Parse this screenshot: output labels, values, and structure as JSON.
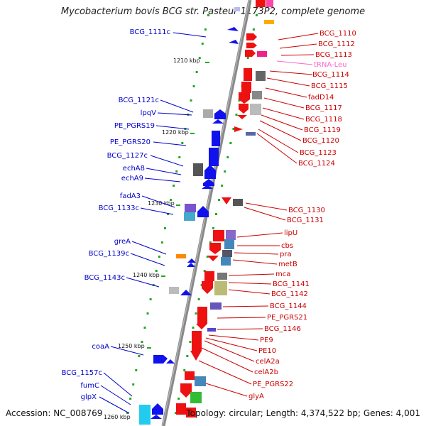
{
  "title": "Mycobacterium bovis BCG str. Pasteur 1173P2, complete genome",
  "footer": {
    "accession": "Accession: NC_008769",
    "summary": "Topology: circular; Length: 4,374,522 bp; Genes: 4,001"
  },
  "colors": {
    "backbone": "#888888",
    "forward_strand": "#ee0000",
    "reverse_strand": "#0000ee",
    "rna_label": "#ff66cc",
    "tick": "#22aa22"
  },
  "ticks": [
    "1210 kbp",
    "1220 kbp",
    "1230 kbp",
    "1240 kbp",
    "1250 kbp",
    "1260 kbp"
  ],
  "left_labels": [
    "BCG_1111c",
    "BCG_1121c",
    "lpqV",
    "PE_PGRS19",
    "PE_PGRS20",
    "BCG_1127c",
    "echA8",
    "echA9",
    "fadA3",
    "BCG_1133c",
    "greA",
    "BCG_1139c",
    "BCG_1143c",
    "coaA",
    "BCG_1157c",
    "fumC",
    "glpX"
  ],
  "right_labels": [
    "BCG_1110",
    "BCG_1112",
    "BCG_1113",
    "tRNA-Leu",
    "BCG_1114",
    "BCG_1115",
    "fadD14",
    "BCG_1117",
    "BCG_1118",
    "BCG_1119",
    "BCG_1120",
    "BCG_1123",
    "BCG_1124",
    "BCG_1130",
    "BCG_1131",
    "lipU",
    "cbs",
    "pra",
    "metB",
    "mca",
    "BCG_1141",
    "BCG_1142",
    "BCG_1144",
    "PE_PGRS21",
    "BCG_1146",
    "PE9",
    "PE10",
    "celA2a",
    "celA2b",
    "PE_PGRS22",
    "glyA"
  ]
}
